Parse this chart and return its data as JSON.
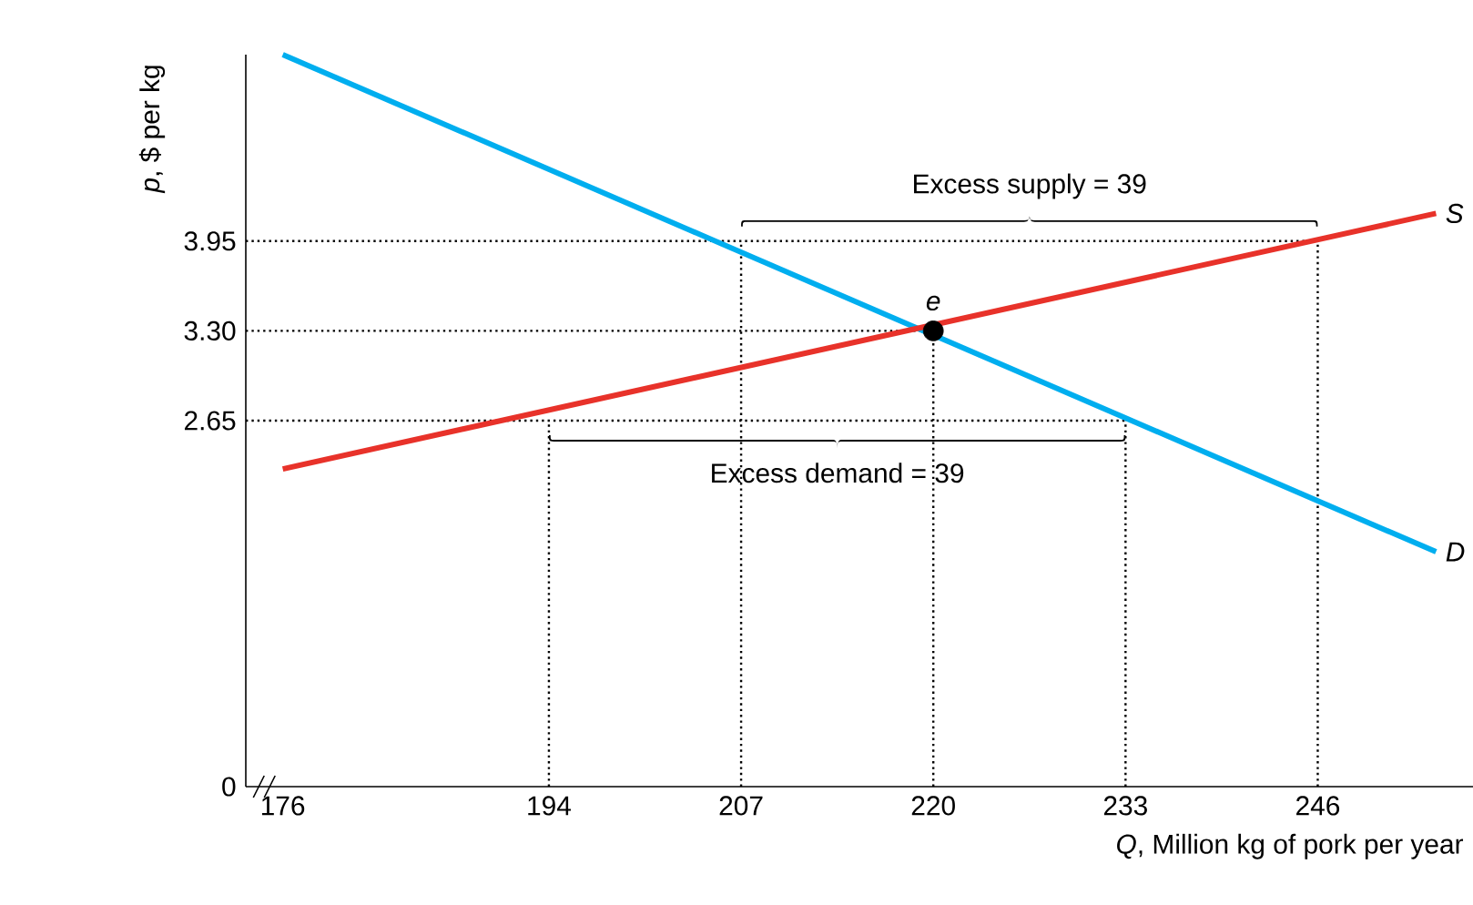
{
  "chart_data": {
    "type": "line",
    "xlabel": "*Q*, Million kg of pork per year",
    "ylabel": "*p*, $ per kg",
    "xlim": [
      173.5,
      256.5
    ],
    "ylim": [
      0,
      5.3
    ],
    "xticks": [
      176,
      194,
      207,
      220,
      233,
      246
    ],
    "yticks": [
      {
        "value": 0,
        "label": "0"
      },
      2.65,
      {
        "value": 3.3,
        "label": "3.30"
      },
      3.95
    ],
    "series": [
      {
        "color": "#000000",
        "line_style": "dotted",
        "x": [
          173.5,
          246
        ],
        "values": [
          3.95,
          3.95
        ]
      },
      {
        "color": "#000000",
        "line_style": "dotted",
        "x": [
          173.5,
          220
        ],
        "values": [
          3.3,
          3.3
        ]
      },
      {
        "color": "#000000",
        "line_style": "dotted",
        "x": [
          173.5,
          233
        ],
        "values": [
          2.65,
          2.65
        ]
      },
      {
        "color": "#000000",
        "line_style": "dotted",
        "x": [
          194,
          194
        ],
        "values": [
          0,
          2.65
        ]
      },
      {
        "color": "#000000",
        "line_style": "dotted",
        "x": [
          207,
          207
        ],
        "values": [
          0,
          3.95
        ]
      },
      {
        "color": "#000000",
        "line_style": "dotted",
        "x": [
          220,
          220
        ],
        "values": [
          0,
          3.3
        ]
      },
      {
        "color": "#000000",
        "line_style": "dotted",
        "x": [
          233,
          233
        ],
        "values": [
          0,
          2.65
        ]
      },
      {
        "color": "#000000",
        "line_style": "dotted",
        "x": [
          246,
          246
        ],
        "values": [
          0,
          3.95
        ]
      },
      {
        "name": "D",
        "color": "#00aeef",
        "line_style": "solid",
        "x": [
          176,
          254
        ],
        "values": [
          5.3,
          1.7
        ]
      },
      {
        "name": "S",
        "color": "#e8322a",
        "line_style": "solid",
        "x": [
          176,
          254
        ],
        "values": [
          2.3,
          4.15
        ]
      },
      {
        "type": "scatter",
        "marker": "circle",
        "color": "#000000",
        "x": [
          220
        ],
        "values": [
          3.3
        ]
      }
    ],
    "annotations": [
      "Excess supply = 39",
      "Excess demand = 39",
      {
        "text": "*e*",
        "x": 220,
        "y": 3.3
      }
    ]
  }
}
